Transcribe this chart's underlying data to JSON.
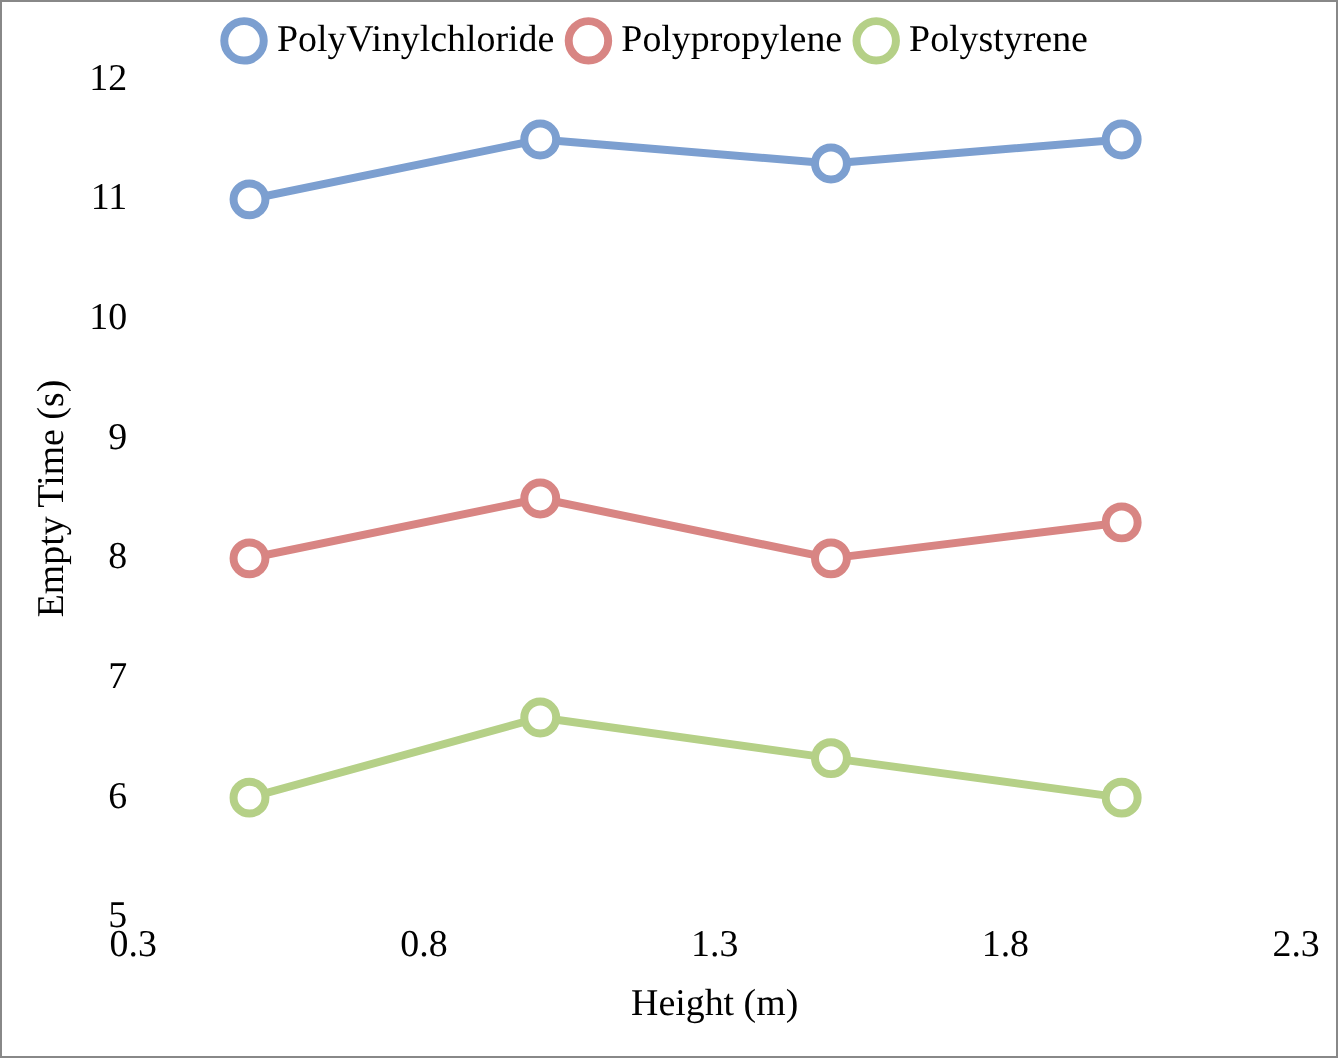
{
  "chart_data": {
    "type": "line",
    "xlabel": "Height (m)",
    "ylabel": "Empty Time (s)",
    "x": [
      0.5,
      1.0,
      1.5,
      2.0
    ],
    "series": [
      {
        "name": "PolyVinylchloride",
        "color": "#7c9fd0",
        "values": [
          11,
          11.5,
          11.3,
          11.5
        ]
      },
      {
        "name": "Polypropylene",
        "color": "#d88583",
        "values": [
          8,
          8.5,
          8,
          8.3
        ]
      },
      {
        "name": "Polystyrene",
        "color": "#b5d087",
        "values": [
          6,
          6.67,
          6.33,
          6
        ]
      }
    ],
    "xlim": [
      0.3,
      2.3
    ],
    "xticks": [
      0.3,
      0.8,
      1.3,
      1.8,
      2.3
    ],
    "ylim": [
      5,
      12
    ],
    "yticks": [
      5,
      6,
      7,
      8,
      9,
      10,
      11,
      12
    ],
    "grid": false,
    "legend": "top",
    "marker": "circle",
    "line_style": "solid"
  }
}
